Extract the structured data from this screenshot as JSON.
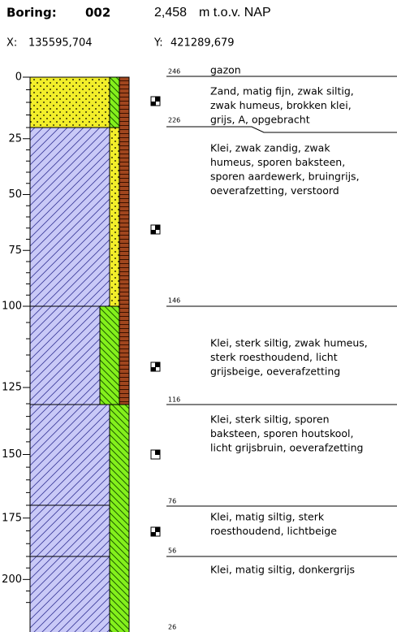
{
  "header": {
    "boring_label": "Boring:",
    "boring_number": "002",
    "elevation": "2,458",
    "elevation_unit": "m t.o.v. NAP",
    "x_label": "X:",
    "x_value": "135595,704",
    "y_label": "Y:",
    "y_value": "421289,679"
  },
  "depth_axis": {
    "ticks": [
      0,
      25,
      50,
      75,
      100,
      125,
      150,
      175,
      200
    ]
  },
  "markers": [
    246,
    226,
    146,
    116,
    76,
    56,
    26
  ],
  "descriptions": [
    [
      "gazon"
    ],
    [
      "Zand, matig fijn, zwak siltig,",
      "zwak humeus, brokken klei,",
      "grijs, A, opgebracht"
    ],
    [
      "Klei, zwak zandig, zwak",
      "humeus, sporen baksteen,",
      "sporen aardewerk, bruingrijs,",
      "oeverafzetting, verstoord"
    ],
    [
      "Klei, sterk siltig, zwak humeus,",
      "sterk roesthoudend, licht",
      "grijsbeige, oeverafzetting"
    ],
    [
      "Klei, sterk siltig, sporen",
      "baksteen, sporen houtskool,",
      "licht grijsbruin, oeverafzetting"
    ],
    [
      "Klei, matig siltig, sterk",
      "roesthoudend, lichtbeige"
    ],
    [
      "Klei, matig siltig, donkergrijs"
    ]
  ]
}
